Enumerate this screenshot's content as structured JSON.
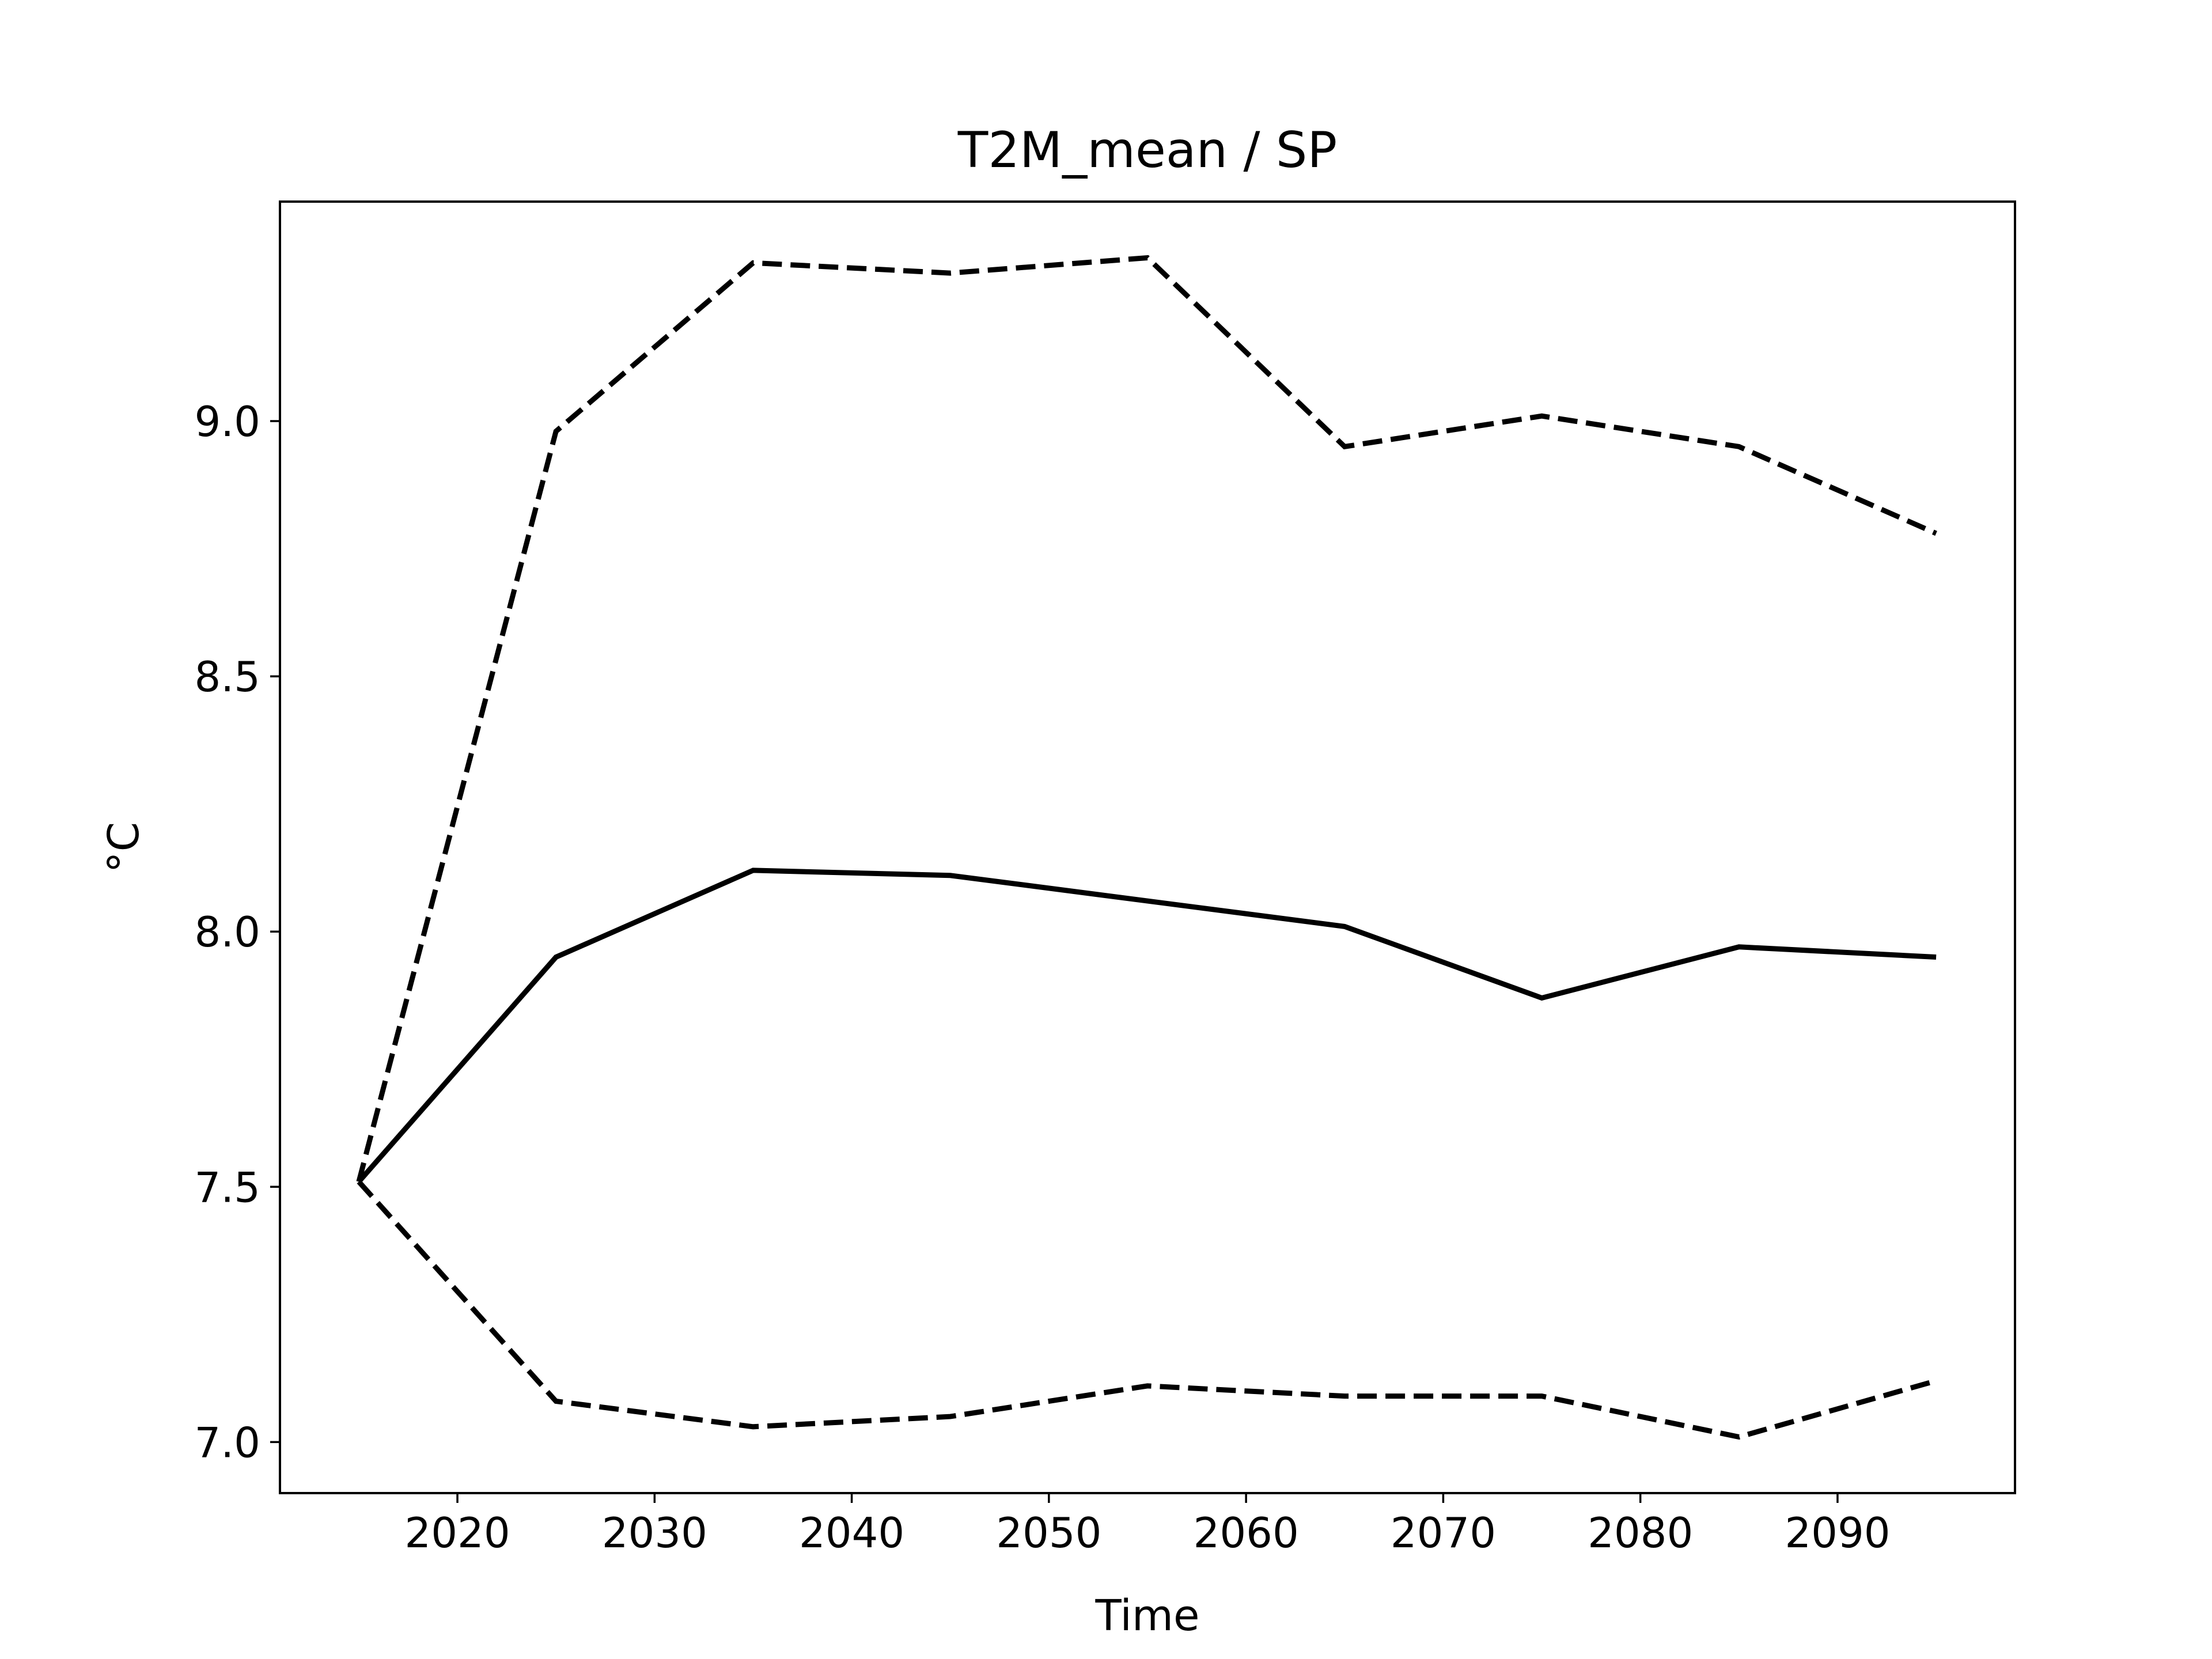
{
  "chart_data": {
    "type": "line",
    "title": "T2M_mean / SP",
    "xlabel": "Time",
    "ylabel": "°C",
    "x": [
      2015,
      2025,
      2035,
      2045,
      2055,
      2065,
      2075,
      2085,
      2095
    ],
    "xlim": [
      2011,
      2099
    ],
    "ylim": [
      6.9,
      9.43
    ],
    "xticks": [
      2020,
      2030,
      2040,
      2050,
      2060,
      2070,
      2080,
      2090
    ],
    "yticks": [
      7.0,
      7.5,
      8.0,
      8.5,
      9.0
    ],
    "xtick_labels": [
      "2020",
      "2030",
      "2040",
      "2050",
      "2060",
      "2070",
      "2080",
      "2090"
    ],
    "ytick_labels": [
      "7.0",
      "7.5",
      "8.0",
      "8.5",
      "9.0"
    ],
    "grid": false,
    "series": [
      {
        "values": [
          7.51,
          7.95,
          8.12,
          8.11,
          8.06,
          8.01,
          7.87,
          7.97,
          7.95
        ],
        "style": "solid",
        "color": "#000000"
      },
      {
        "values": [
          7.51,
          8.98,
          9.31,
          9.29,
          9.32,
          8.95,
          9.01,
          8.95,
          8.78
        ],
        "style": "dashed",
        "color": "#000000"
      },
      {
        "values": [
          7.51,
          7.08,
          7.03,
          7.05,
          7.11,
          7.09,
          7.09,
          7.01,
          7.12
        ],
        "style": "dashed",
        "color": "#000000"
      }
    ]
  }
}
